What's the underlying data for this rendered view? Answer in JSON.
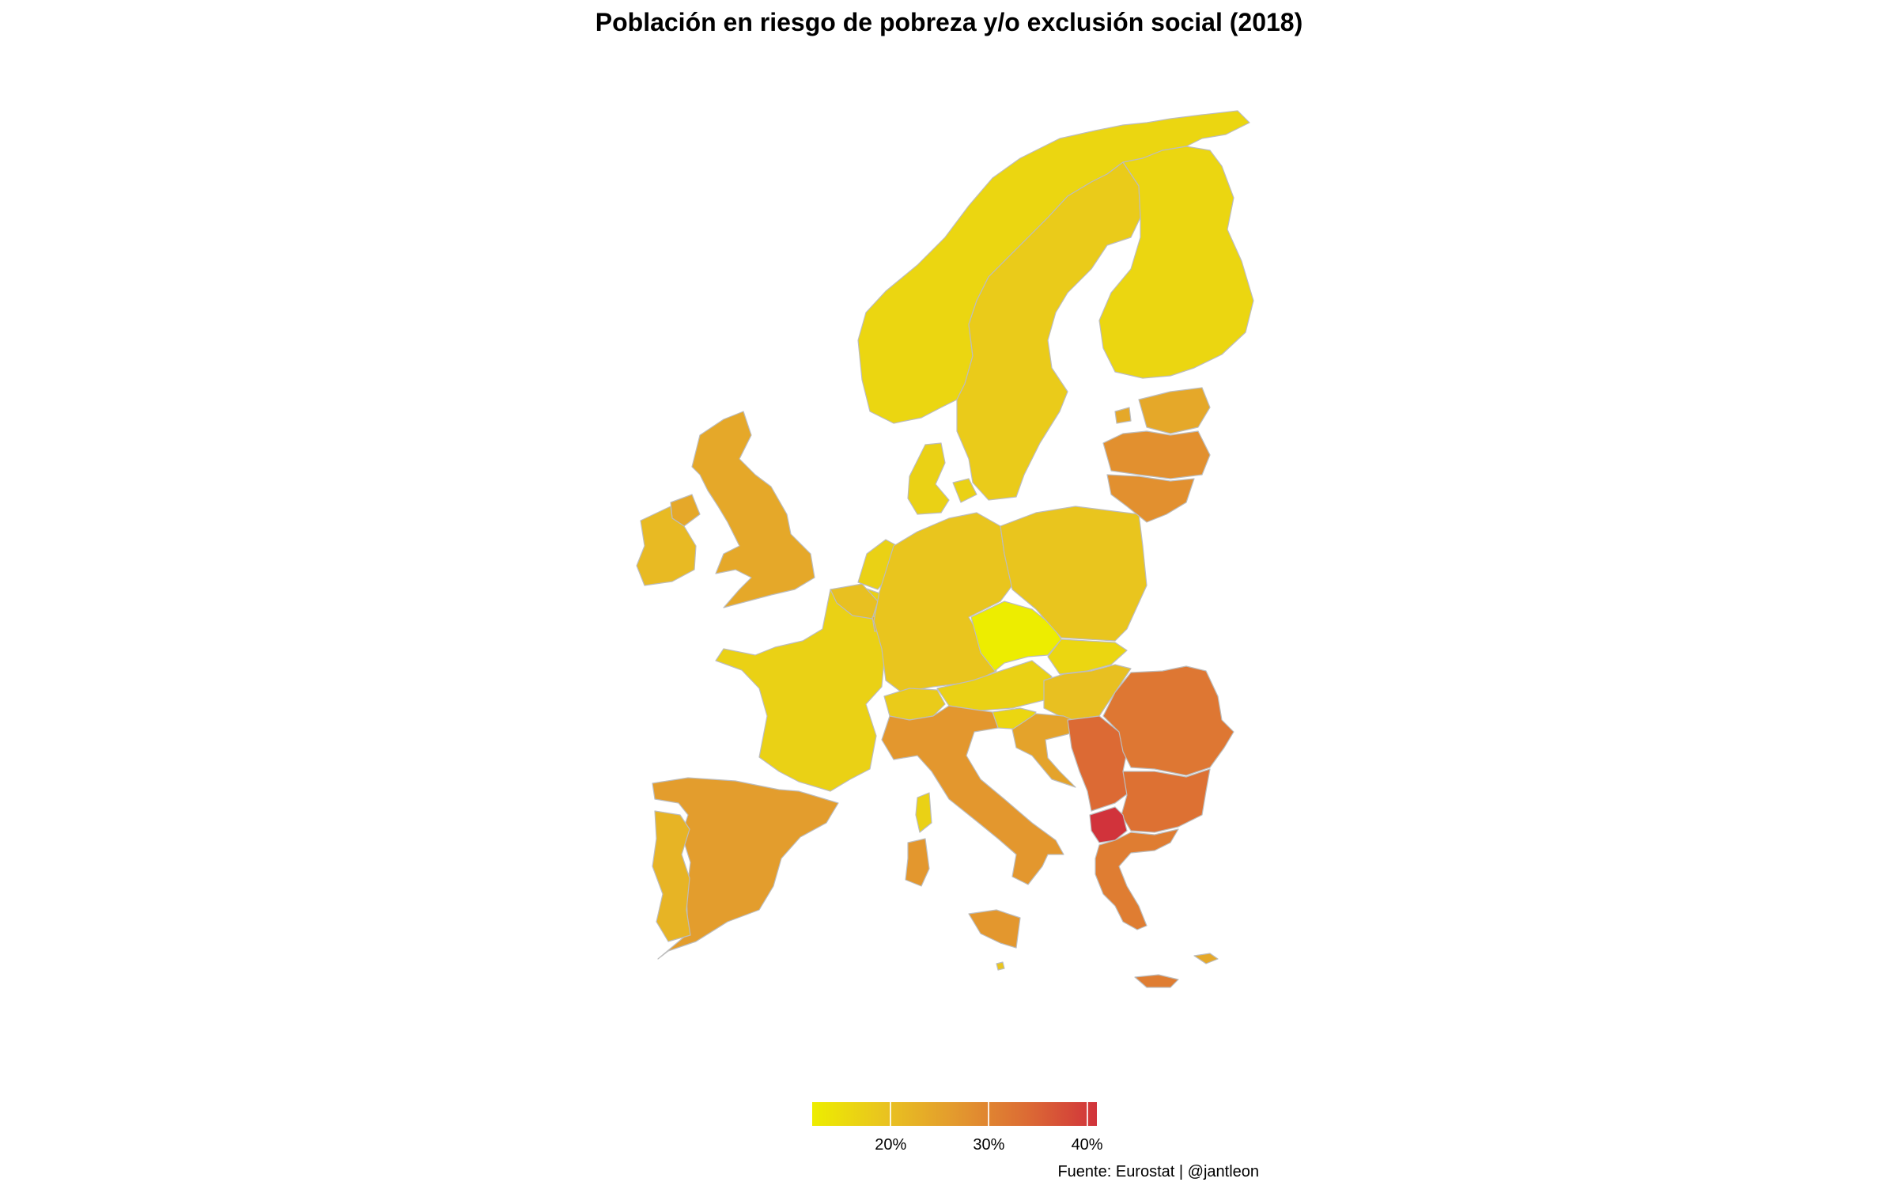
{
  "title": "Población en riesgo de pobreza y/o exclusión social (2018)",
  "source": "Fuente: Eurostat | @jantleon",
  "legend": {
    "min": 12,
    "max": 41,
    "colors": [
      "#eded00",
      "#e9c41f",
      "#e39a2e",
      "#dc6c34",
      "#d1333b"
    ],
    "ticks": [
      {
        "value": 20,
        "label": "20%"
      },
      {
        "value": 30,
        "label": "30%"
      },
      {
        "value": 40,
        "label": "40%"
      }
    ]
  },
  "chart_data": {
    "type": "choropleth",
    "title": "Población en riesgo de pobreza y/o exclusión social (2018)",
    "variable": "Población en riesgo de pobreza y/o exclusión social (%)",
    "regions": [
      {
        "id": "ES",
        "value": 26
      },
      {
        "id": "PT",
        "value": 22
      },
      {
        "id": "FR",
        "value": 17
      },
      {
        "id": "BE",
        "value": 20
      },
      {
        "id": "NL",
        "value": 17
      },
      {
        "id": "LU",
        "value": 22
      },
      {
        "id": "DE",
        "value": 19
      },
      {
        "id": "DK",
        "value": 17
      },
      {
        "id": "CH",
        "value": 18
      },
      {
        "id": "AT",
        "value": 17
      },
      {
        "id": "CZ",
        "value": 12
      },
      {
        "id": "SK",
        "value": 16
      },
      {
        "id": "HU",
        "value": 20
      },
      {
        "id": "PL",
        "value": 19
      },
      {
        "id": "SI",
        "value": 16
      },
      {
        "id": "HR",
        "value": 25
      },
      {
        "id": "IT",
        "value": 27
      },
      {
        "id": "MT",
        "value": 19
      },
      {
        "id": "GB",
        "value": 24
      },
      {
        "id": "IE",
        "value": 21
      },
      {
        "id": "NO",
        "value": 16
      },
      {
        "id": "SE",
        "value": 18
      },
      {
        "id": "FI",
        "value": 16
      },
      {
        "id": "EE",
        "value": 24
      },
      {
        "id": "LV",
        "value": 28
      },
      {
        "id": "LT",
        "value": 28
      },
      {
        "id": "RO",
        "value": 32
      },
      {
        "id": "BG",
        "value": 33
      },
      {
        "id": "RS",
        "value": 34
      },
      {
        "id": "MK",
        "value": 41
      },
      {
        "id": "GR",
        "value": 31
      },
      {
        "id": "CY",
        "value": 24
      }
    ]
  }
}
